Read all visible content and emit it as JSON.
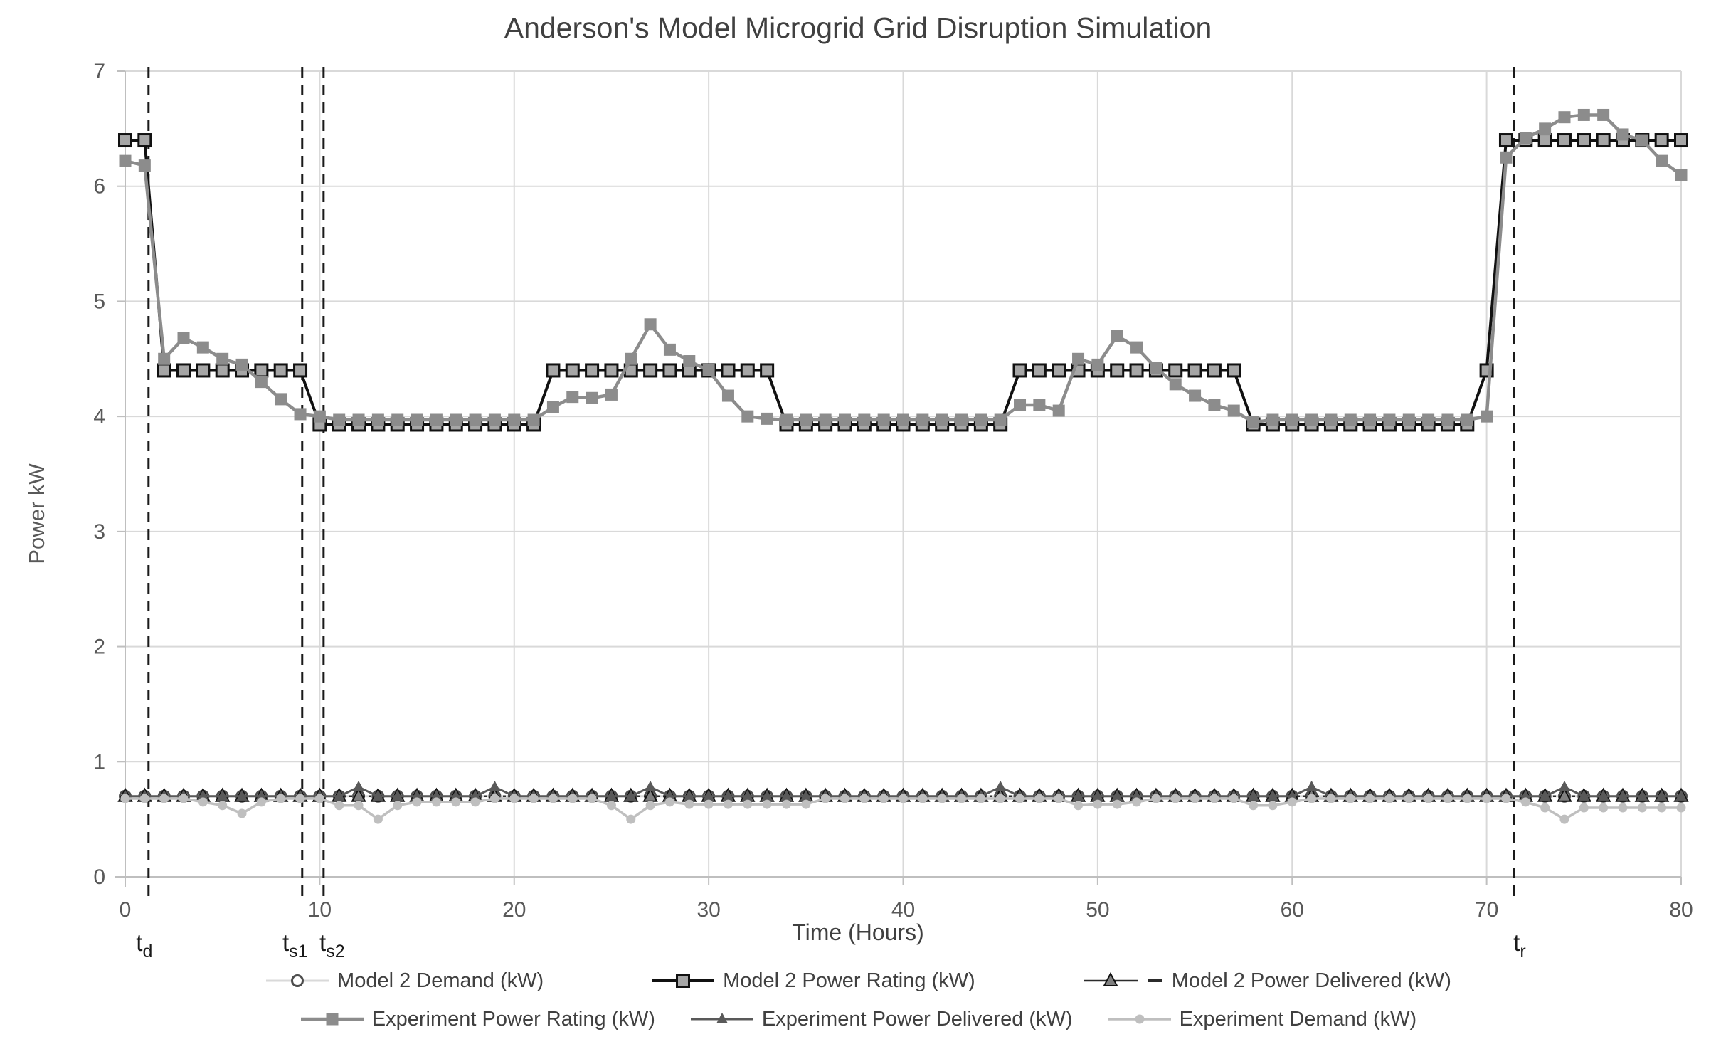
{
  "title": "Anderson's Model Microgrid Grid Disruption Simulation",
  "y_axis": {
    "title": "Power kW",
    "min": 0,
    "max": 7,
    "ticks": [
      0,
      1,
      2,
      3,
      4,
      5,
      6,
      7
    ]
  },
  "x_axis": {
    "title": "Time (Hours)",
    "min": 0,
    "max": 80,
    "ticks": [
      0,
      10,
      20,
      30,
      40,
      50,
      60,
      70,
      80
    ]
  },
  "annotations": [
    {
      "name": "t_d",
      "base": "t",
      "sub": "d",
      "hour": 1.2,
      "label_dx": -6
    },
    {
      "name": "t_s1",
      "base": "t",
      "sub": "s1",
      "hour": 9.1,
      "label_dx": -10
    },
    {
      "name": "t_s2",
      "base": "t",
      "sub": "s2",
      "hour": 10.2,
      "label_dx": 12
    },
    {
      "name": "t_r",
      "base": "t",
      "sub": "r",
      "hour": 71.4,
      "label_dx": 8
    }
  ],
  "annotation_style": {
    "color": "#1a1a1a",
    "dash": "15 10",
    "width": 3
  },
  "grid_color": "#d9d9d9",
  "axis_color": "#bfbfbf",
  "legend": {
    "rows": [
      [
        "Model 2 Demand (kW)",
        "Model 2 Power Rating (kW)",
        "Model 2 Power Delivered (kW)"
      ],
      [
        "Experiment Power Rating (kW)",
        "Experiment Power Delivered (kW)",
        "Experiment Demand (kW)"
      ]
    ]
  },
  "chart_data": {
    "type": "line",
    "title": "Anderson's Model Microgrid Grid Disruption Simulation",
    "xlabel": "Time (Hours)",
    "ylabel": "Power kW",
    "xlim": [
      0,
      80
    ],
    "ylim": [
      0,
      7
    ],
    "grid": true,
    "legend_position": "bottom",
    "x_start": 0,
    "x_step": 1,
    "n_points": 81,
    "series": [
      {
        "name": "Model 2 Demand (kW)",
        "color": "#d9d9d9",
        "line_width": 3,
        "dash": "",
        "marker": "circle-open",
        "marker_fill": "#ffffff",
        "marker_edge": "#4d4d4d",
        "marker_size": 15,
        "values": [
          0.7,
          0.7,
          0.7,
          0.7,
          0.7,
          0.7,
          0.7,
          0.7,
          0.7,
          0.7,
          0.7,
          0.7,
          0.7,
          0.7,
          0.7,
          0.7,
          0.7,
          0.7,
          0.7,
          0.7,
          0.7,
          0.7,
          0.7,
          0.7,
          0.7,
          0.7,
          0.7,
          0.7,
          0.7,
          0.7,
          0.7,
          0.7,
          0.7,
          0.7,
          0.7,
          0.7,
          0.7,
          0.7,
          0.7,
          0.7,
          0.7,
          0.7,
          0.7,
          0.7,
          0.7,
          0.7,
          0.7,
          0.7,
          0.7,
          0.7,
          0.7,
          0.7,
          0.7,
          0.7,
          0.7,
          0.7,
          0.7,
          0.7,
          0.7,
          0.7,
          0.7,
          0.7,
          0.7,
          0.7,
          0.7,
          0.7,
          0.7,
          0.7,
          0.7,
          0.7,
          0.7,
          0.7,
          0.7,
          0.7,
          0.7,
          0.7,
          0.7,
          0.7,
          0.7,
          0.7,
          0.7
        ]
      },
      {
        "name": "Model 2 Power Rating (kW)",
        "color": "#111111",
        "line_width": 4,
        "dash": "",
        "marker": "square-open",
        "marker_fill": "#a6a6a6",
        "marker_edge": "#111111",
        "marker_size": 17,
        "values": [
          6.4,
          6.4,
          4.4,
          4.4,
          4.4,
          4.4,
          4.4,
          4.4,
          4.4,
          4.4,
          3.93,
          3.93,
          3.93,
          3.93,
          3.93,
          3.93,
          3.93,
          3.93,
          3.93,
          3.93,
          3.93,
          3.93,
          4.4,
          4.4,
          4.4,
          4.4,
          4.4,
          4.4,
          4.4,
          4.4,
          4.4,
          4.4,
          4.4,
          4.4,
          3.93,
          3.93,
          3.93,
          3.93,
          3.93,
          3.93,
          3.93,
          3.93,
          3.93,
          3.93,
          3.93,
          3.93,
          4.4,
          4.4,
          4.4,
          4.4,
          4.4,
          4.4,
          4.4,
          4.4,
          4.4,
          4.4,
          4.4,
          4.4,
          3.93,
          3.93,
          3.93,
          3.93,
          3.93,
          3.93,
          3.93,
          3.93,
          3.93,
          3.93,
          3.93,
          3.93,
          4.4,
          6.4,
          6.4,
          6.4,
          6.4,
          6.4,
          6.4,
          6.4,
          6.4,
          6.4,
          6.4
        ]
      },
      {
        "name": "Model 2 Power Delivered (kW)",
        "color": "#2b2b2b",
        "line_width": 2.5,
        "dash": "4 5",
        "legend_dash": true,
        "marker": "triangle",
        "marker_fill": "#808080",
        "marker_edge": "#111111",
        "marker_size": 18,
        "values": [
          0.7,
          0.7,
          0.7,
          0.7,
          0.7,
          0.7,
          0.7,
          0.7,
          0.7,
          0.7,
          0.7,
          0.7,
          0.7,
          0.7,
          0.7,
          0.7,
          0.7,
          0.7,
          0.7,
          0.7,
          0.7,
          0.7,
          0.7,
          0.7,
          0.7,
          0.7,
          0.7,
          0.7,
          0.7,
          0.7,
          0.7,
          0.7,
          0.7,
          0.7,
          0.7,
          0.7,
          0.7,
          0.7,
          0.7,
          0.7,
          0.7,
          0.7,
          0.7,
          0.7,
          0.7,
          0.7,
          0.7,
          0.7,
          0.7,
          0.7,
          0.7,
          0.7,
          0.7,
          0.7,
          0.7,
          0.7,
          0.7,
          0.7,
          0.7,
          0.7,
          0.7,
          0.7,
          0.7,
          0.7,
          0.7,
          0.7,
          0.7,
          0.7,
          0.7,
          0.7,
          0.7,
          0.7,
          0.7,
          0.7,
          0.7,
          0.7,
          0.7,
          0.7,
          0.7,
          0.7,
          0.7
        ]
      },
      {
        "name": "Experiment Power Rating (kW)",
        "color": "#8c8c8c",
        "line_width": 4.5,
        "dash": "",
        "marker": "square",
        "marker_fill": "#8c8c8c",
        "marker_edge": "",
        "marker_size": 17,
        "values": [
          6.22,
          6.18,
          4.5,
          4.68,
          4.6,
          4.5,
          4.45,
          4.3,
          4.15,
          4.02,
          4.0,
          3.97,
          3.97,
          3.97,
          3.97,
          3.97,
          3.97,
          3.97,
          3.97,
          3.97,
          3.97,
          3.97,
          4.08,
          4.17,
          4.16,
          4.19,
          4.5,
          4.8,
          4.58,
          4.48,
          4.4,
          4.18,
          4.0,
          3.98,
          3.97,
          3.97,
          3.97,
          3.97,
          3.97,
          3.97,
          3.97,
          3.97,
          3.97,
          3.97,
          3.97,
          3.97,
          4.1,
          4.1,
          4.05,
          4.5,
          4.45,
          4.7,
          4.6,
          4.42,
          4.28,
          4.18,
          4.1,
          4.05,
          3.95,
          3.97,
          3.97,
          3.97,
          3.97,
          3.97,
          3.97,
          3.97,
          3.97,
          3.97,
          3.97,
          3.97,
          4.0,
          6.25,
          6.42,
          6.5,
          6.6,
          6.62,
          6.62,
          6.45,
          6.4,
          6.22,
          6.1
        ]
      },
      {
        "name": "Experiment Power Delivered (kW)",
        "color": "#595959",
        "line_width": 3,
        "dash": "",
        "marker": "triangle",
        "marker_fill": "#595959",
        "marker_edge": "",
        "marker_size": 16,
        "values": [
          0.7,
          0.7,
          0.7,
          0.7,
          0.7,
          0.7,
          0.7,
          0.7,
          0.7,
          0.7,
          0.7,
          0.7,
          0.78,
          0.7,
          0.7,
          0.7,
          0.7,
          0.7,
          0.7,
          0.78,
          0.7,
          0.7,
          0.7,
          0.7,
          0.7,
          0.7,
          0.7,
          0.78,
          0.7,
          0.7,
          0.7,
          0.7,
          0.7,
          0.7,
          0.7,
          0.7,
          0.7,
          0.7,
          0.7,
          0.7,
          0.7,
          0.7,
          0.7,
          0.7,
          0.7,
          0.78,
          0.7,
          0.7,
          0.7,
          0.7,
          0.7,
          0.7,
          0.7,
          0.7,
          0.7,
          0.7,
          0.7,
          0.7,
          0.7,
          0.7,
          0.7,
          0.78,
          0.7,
          0.7,
          0.7,
          0.7,
          0.7,
          0.7,
          0.7,
          0.7,
          0.7,
          0.7,
          0.7,
          0.7,
          0.78,
          0.7,
          0.7,
          0.7,
          0.7,
          0.7,
          0.7
        ]
      },
      {
        "name": "Experiment Demand (kW)",
        "color": "#bfbfbf",
        "line_width": 3.5,
        "dash": "",
        "marker": "circle",
        "marker_fill": "#bfbfbf",
        "marker_edge": "",
        "marker_size": 13,
        "values": [
          0.68,
          0.68,
          0.68,
          0.68,
          0.65,
          0.62,
          0.55,
          0.65,
          0.68,
          0.68,
          0.68,
          0.62,
          0.62,
          0.5,
          0.62,
          0.65,
          0.65,
          0.65,
          0.65,
          0.68,
          0.68,
          0.68,
          0.68,
          0.68,
          0.68,
          0.62,
          0.5,
          0.62,
          0.65,
          0.63,
          0.63,
          0.63,
          0.63,
          0.63,
          0.63,
          0.63,
          0.68,
          0.68,
          0.68,
          0.68,
          0.68,
          0.68,
          0.68,
          0.68,
          0.68,
          0.68,
          0.68,
          0.68,
          0.68,
          0.62,
          0.63,
          0.63,
          0.65,
          0.68,
          0.68,
          0.68,
          0.68,
          0.68,
          0.62,
          0.62,
          0.65,
          0.68,
          0.68,
          0.68,
          0.68,
          0.68,
          0.68,
          0.68,
          0.68,
          0.68,
          0.68,
          0.68,
          0.65,
          0.6,
          0.5,
          0.6,
          0.6,
          0.6,
          0.6,
          0.6,
          0.6
        ]
      }
    ]
  }
}
